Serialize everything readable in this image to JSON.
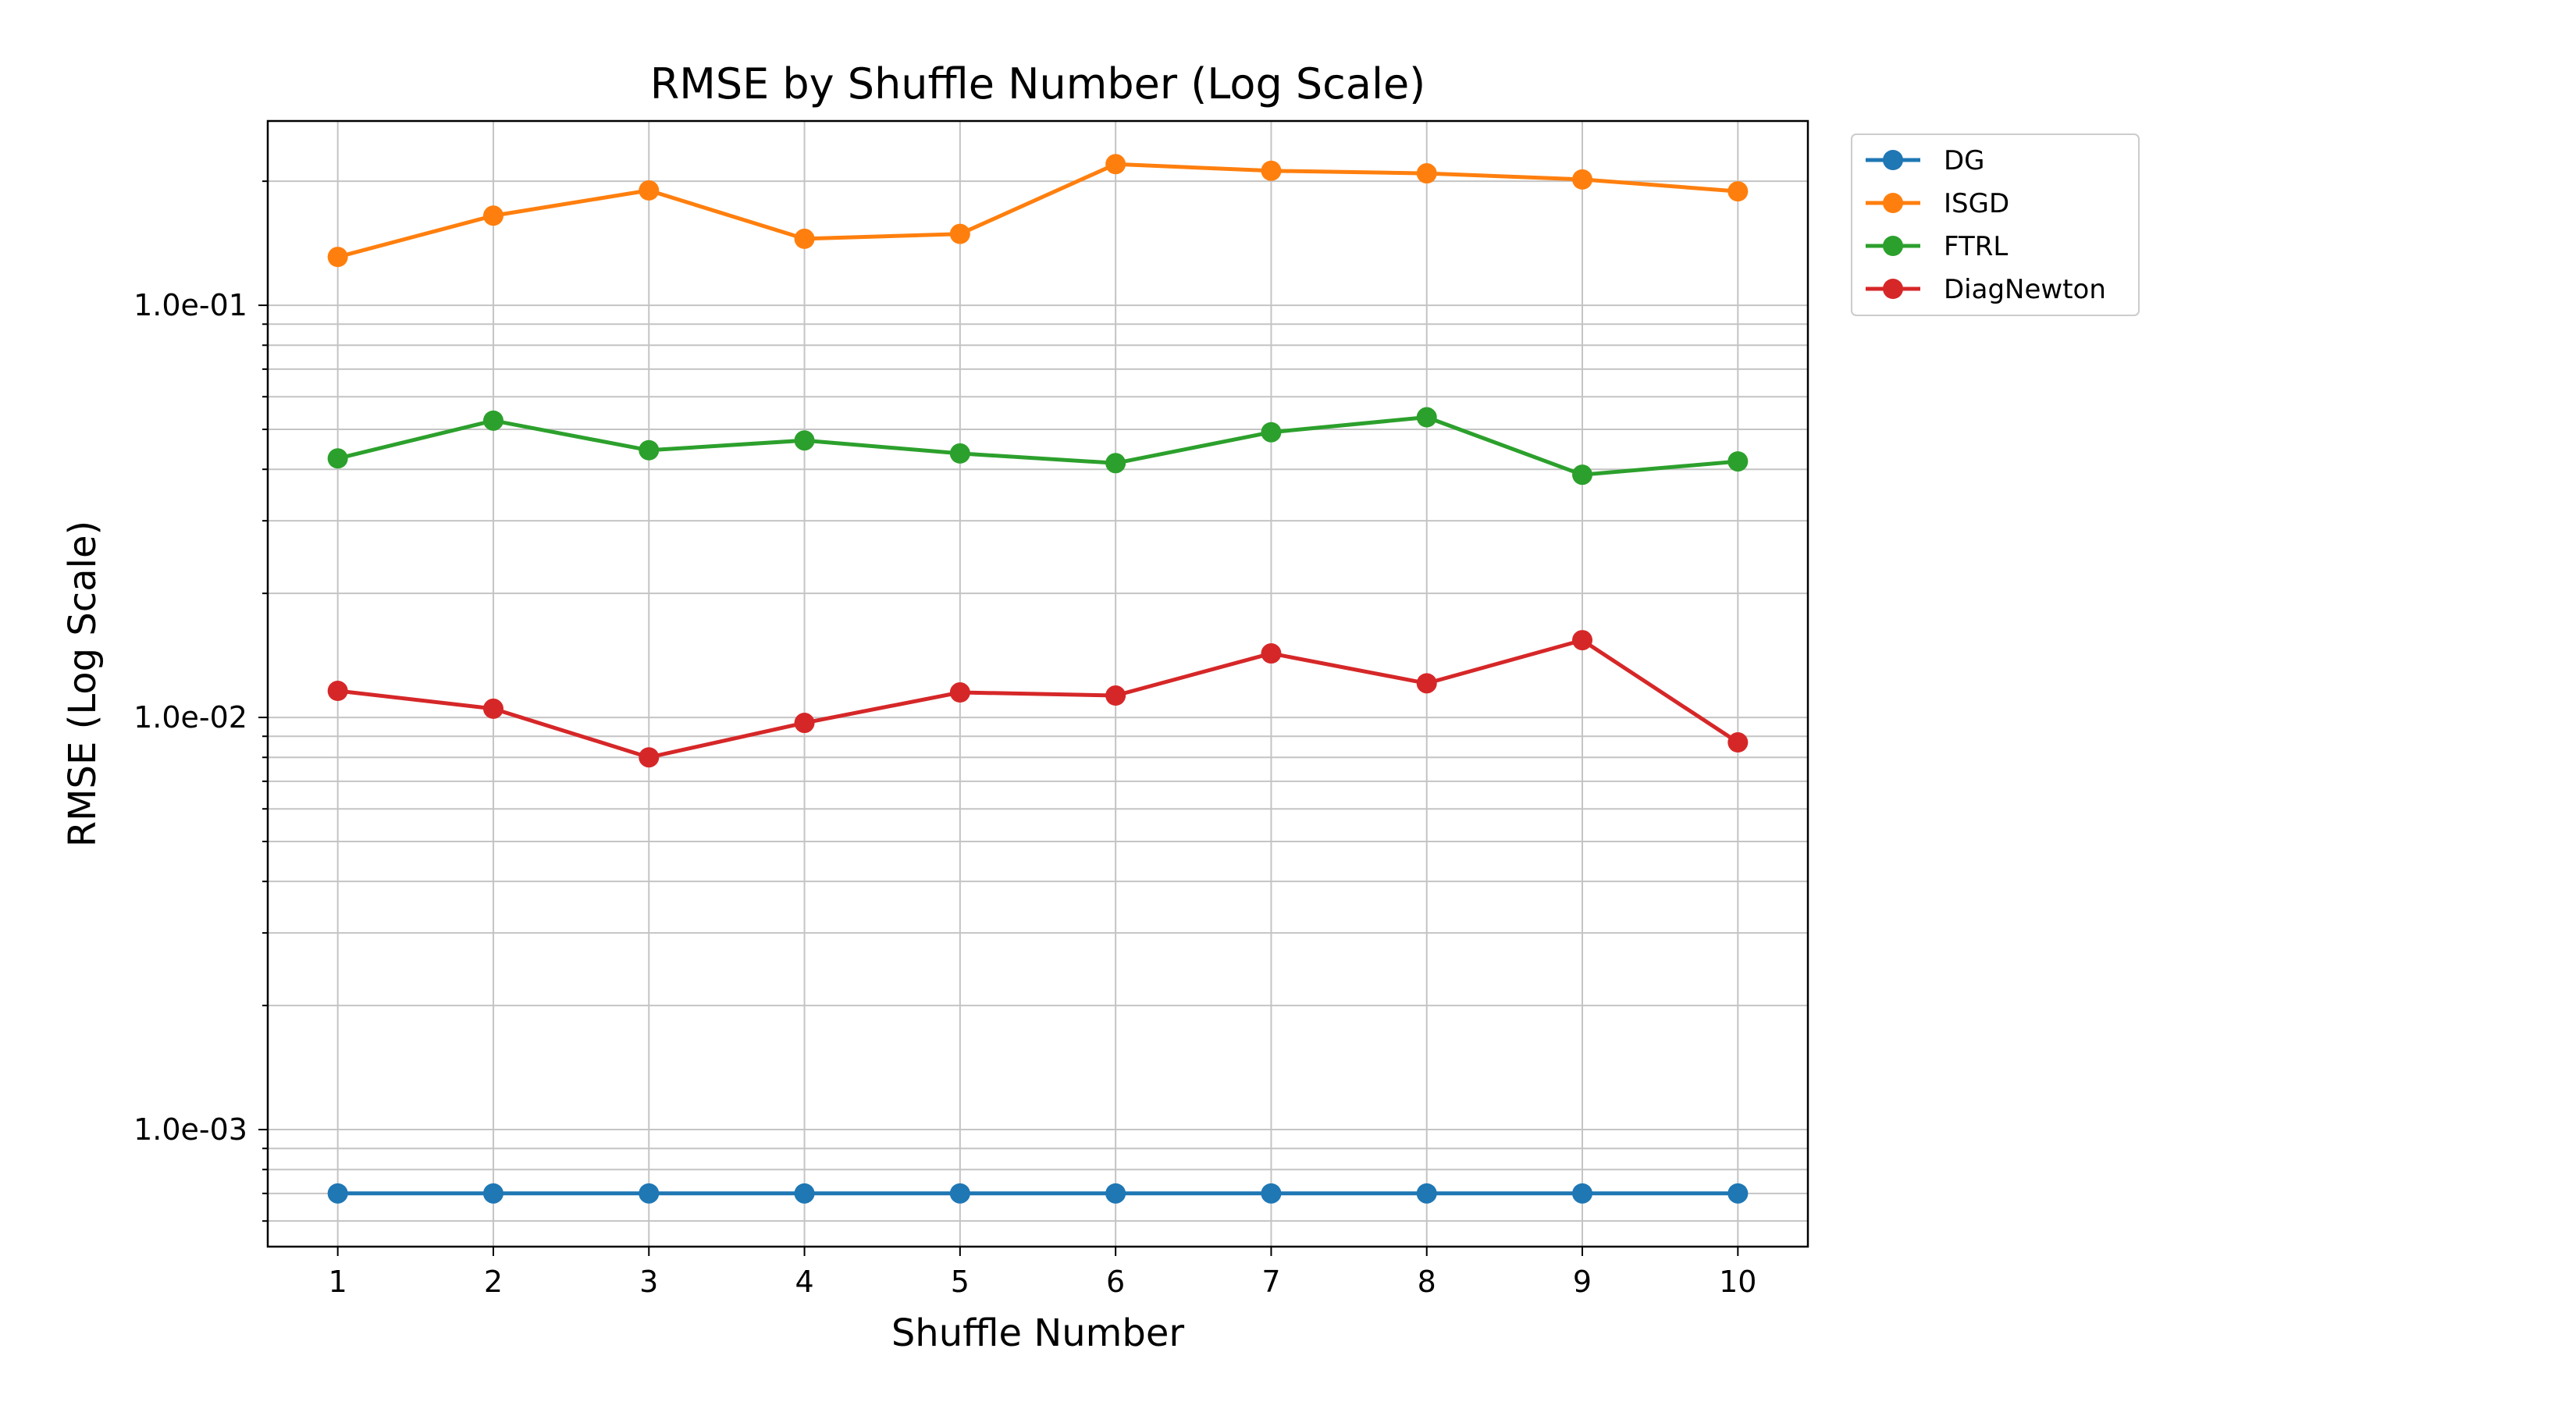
{
  "chart_data": {
    "type": "line",
    "title": "RMSE by Shuffle Number (Log Scale)",
    "xlabel": "Shuffle Number",
    "ylabel": "RMSE (Log Scale)",
    "yscale": "log",
    "ylim": [
      0.00052,
      0.28
    ],
    "xlim": [
      0.55,
      10.45
    ],
    "grid": true,
    "legend_position": "outside-top-right",
    "x": [
      1,
      2,
      3,
      4,
      5,
      6,
      7,
      8,
      9,
      10
    ],
    "x_tick_labels": [
      "1",
      "2",
      "3",
      "4",
      "5",
      "6",
      "7",
      "8",
      "9",
      "10"
    ],
    "y_ticks": [
      0.001,
      0.01,
      0.1
    ],
    "y_tick_labels": [
      "1.0e-03",
      "1.0e-02",
      "1.0e-01"
    ],
    "series": [
      {
        "name": "DG",
        "color": "#1f77b4",
        "values": [
          0.0007,
          0.0007,
          0.0007,
          0.0007,
          0.0007,
          0.0007,
          0.0007,
          0.0007,
          0.0007,
          0.0007
        ]
      },
      {
        "name": "ISGD",
        "color": "#ff7f0e",
        "values": [
          0.131,
          0.165,
          0.19,
          0.145,
          0.149,
          0.22,
          0.212,
          0.209,
          0.202,
          0.189
        ]
      },
      {
        "name": "FTRL",
        "color": "#2ca02c",
        "values": [
          0.0425,
          0.0525,
          0.0445,
          0.047,
          0.0437,
          0.0414,
          0.0492,
          0.0535,
          0.0388,
          0.0418
        ]
      },
      {
        "name": "DiagNewton",
        "color": "#d62728",
        "values": [
          0.0116,
          0.0105,
          0.008,
          0.0097,
          0.0115,
          0.0113,
          0.0143,
          0.0121,
          0.0154,
          0.0087
        ]
      }
    ]
  }
}
